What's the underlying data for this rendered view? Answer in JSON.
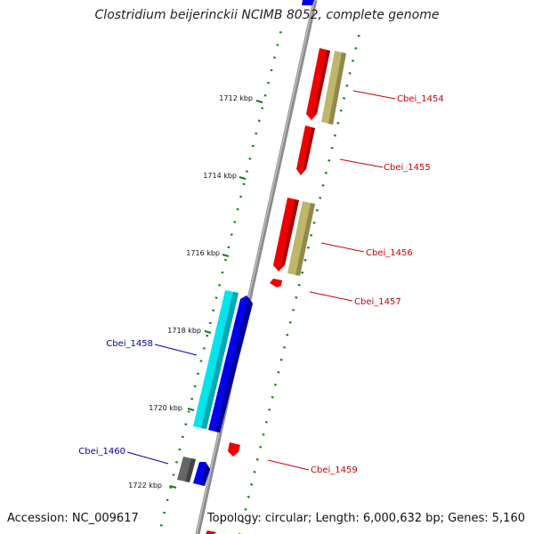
{
  "title": "Clostridium beijerinckii NCIMB 8052, complete genome",
  "footer": {
    "accession": "Accession: NC_009617",
    "topology": "Topology: circular; Length: 6,000,632 bp; Genes: 5,160"
  },
  "colors": {
    "forward_cds": "#0000ee",
    "reverse_cds": "#ee0000",
    "rna": "#00e5ee",
    "pseudo": "#bdb76b",
    "other": "#666666",
    "backbone": "#8c8c8c",
    "tick": "#127d12",
    "label_reverse": "#cc0000",
    "label_forward": "#0000aa"
  },
  "ticks": [
    {
      "label": "1712 kbp"
    },
    {
      "label": "1714 kbp"
    },
    {
      "label": "1716 kbp"
    },
    {
      "label": "1718 kbp"
    },
    {
      "label": "1720 kbp"
    },
    {
      "label": "1722 kbp"
    }
  ],
  "gene_labels": [
    {
      "name": "Cbei_1454",
      "strand": "reverse"
    },
    {
      "name": "Cbei_1455",
      "strand": "reverse"
    },
    {
      "name": "Cbei_1456",
      "strand": "reverse"
    },
    {
      "name": "Cbei_1457",
      "strand": "reverse"
    },
    {
      "name": "Cbei_1458",
      "strand": "forward"
    },
    {
      "name": "Cbei_1459",
      "strand": "reverse"
    },
    {
      "name": "Cbei_1460",
      "strand": "forward"
    }
  ]
}
